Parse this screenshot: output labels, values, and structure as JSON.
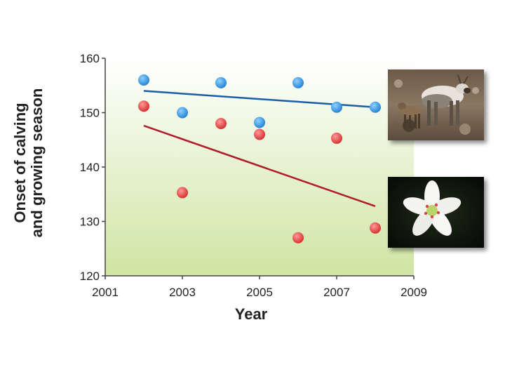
{
  "chart_data": {
    "type": "scatter",
    "title": "",
    "xlabel": "Year",
    "ylabel_line1": "Onset of calving",
    "ylabel_line2": "and growing season",
    "xlim": [
      2001,
      2009
    ],
    "ylim": [
      120,
      160
    ],
    "x_ticks": [
      "2001",
      "2003",
      "2005",
      "2007",
      "2009"
    ],
    "y_ticks": [
      "120",
      "130",
      "140",
      "150",
      "160"
    ],
    "background_gradient": [
      "#ffffff",
      "#cfe5a3"
    ],
    "series": [
      {
        "color": "#2b8fd6",
        "trend_color": "#1a5ea8",
        "x": [
          2002,
          2003,
          2004,
          2005,
          2006,
          2007,
          2008
        ],
        "y": [
          156,
          150,
          155.5,
          148.2,
          155.5,
          151,
          151
        ],
        "trend": [
          [
            2002,
            154
          ],
          [
            2008,
            151
          ]
        ]
      },
      {
        "color": "#e03a3a",
        "trend_color": "#b01c2a",
        "x": [
          2002,
          2003,
          2004,
          2005,
          2006,
          2007,
          2008
        ],
        "y": [
          151.2,
          135.3,
          148,
          146,
          127,
          145.3,
          128.8
        ],
        "trend": [
          [
            2002,
            147.6
          ],
          [
            2008,
            132.8
          ]
        ]
      }
    ]
  },
  "images": {
    "top": "caribou-photo",
    "bottom": "flower-photo"
  }
}
